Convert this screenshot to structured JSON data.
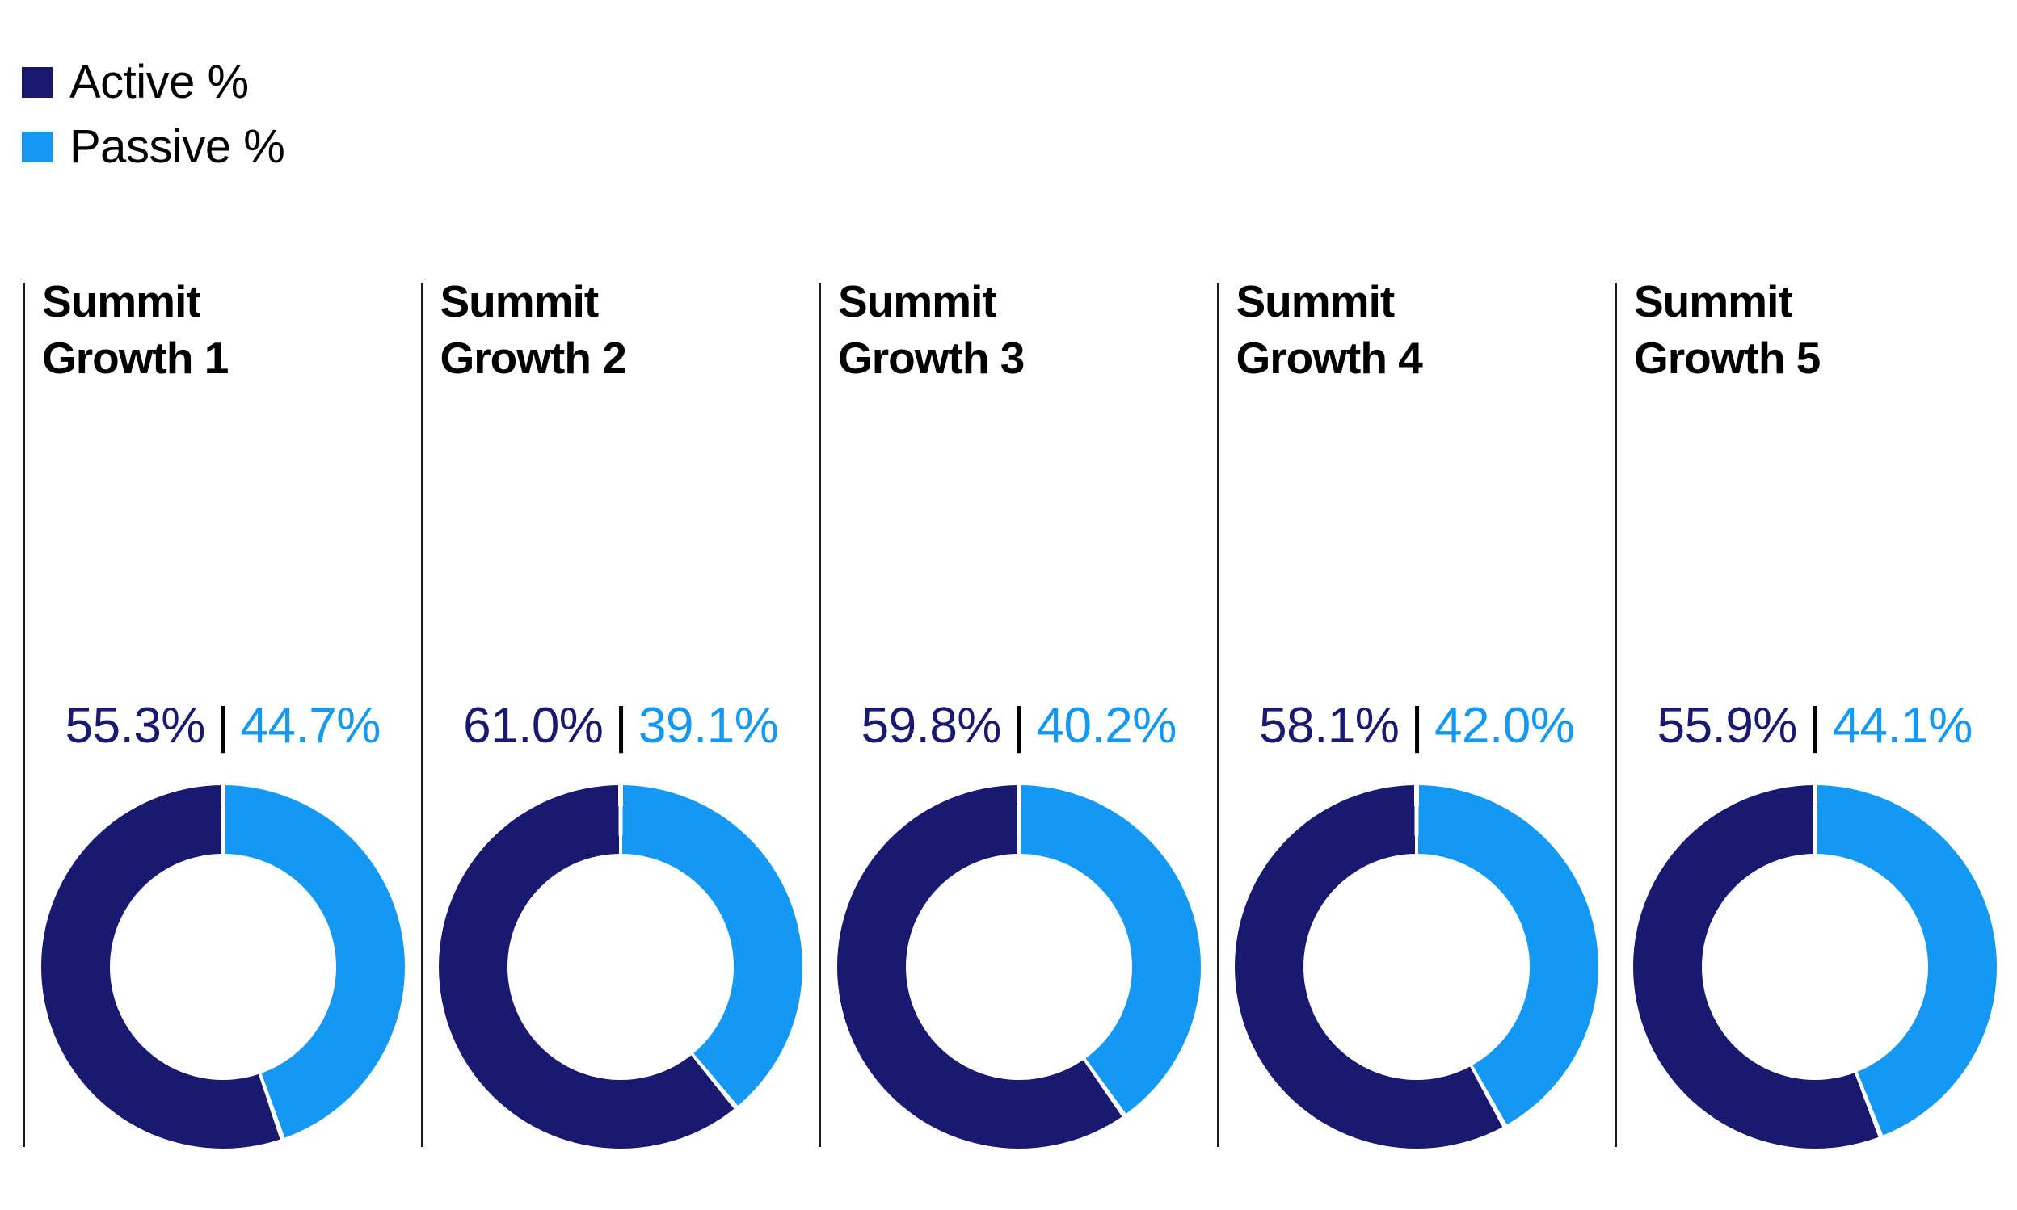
{
  "chart_data": {
    "type": "pie",
    "subtype": "donut-small-multiples",
    "title": "",
    "legend": [
      {
        "label": "Active %",
        "color": "#191970"
      },
      {
        "label": "Passive %",
        "color": "#1598F2"
      }
    ],
    "value_separator": "|",
    "charts": [
      {
        "title": "Summit Growth 1",
        "active_pct": 55.3,
        "passive_pct": 44.7,
        "active_label": "55.3%",
        "passive_label": "44.7%"
      },
      {
        "title": "Summit Growth 2",
        "active_pct": 61.0,
        "passive_pct": 39.1,
        "active_label": "61.0%",
        "passive_label": "39.1%"
      },
      {
        "title": "Summit Growth 3",
        "active_pct": 59.8,
        "passive_pct": 40.2,
        "active_label": "59.8%",
        "passive_label": "40.2%"
      },
      {
        "title": "Summit Growth 4",
        "active_pct": 58.1,
        "passive_pct": 42.0,
        "active_label": "58.1%",
        "passive_label": "42.0%"
      },
      {
        "title": "Summit Growth 5",
        "active_pct": 55.9,
        "passive_pct": 44.1,
        "active_label": "55.9%",
        "passive_label": "44.1%"
      }
    ],
    "layout": {
      "legend_position": "top-left",
      "panel_count": 5,
      "donut_start_angle": "top",
      "donut_first_segment_clockwise": "passive",
      "donut_hole_ratio": 0.62,
      "segment_gap_color": "#ffffff"
    }
  },
  "colors": {
    "active": "#191970",
    "passive": "#1598F2",
    "value_separator": "#000000",
    "panel_border": "#1a1a1a",
    "background": "#ffffff"
  }
}
